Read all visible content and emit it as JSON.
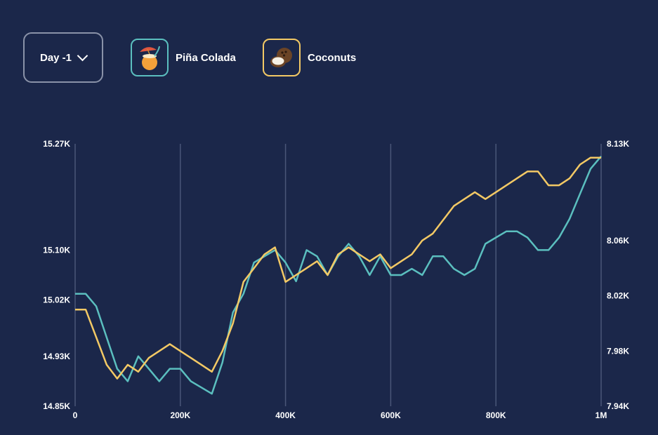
{
  "controls": {
    "day_label": "Day -1"
  },
  "legend": [
    {
      "label": "Piña Colada",
      "color": "#5bbfbf",
      "icon": "pina-colada-icon"
    },
    {
      "label": "Coconuts",
      "color": "#f3c965",
      "icon": "coconut-icon"
    }
  ],
  "chart_data": {
    "type": "line",
    "xlim": [
      0,
      1000000
    ],
    "x_ticks": [
      {
        "value": 0,
        "label": "0"
      },
      {
        "value": 200000,
        "label": "200K"
      },
      {
        "value": 400000,
        "label": "400K"
      },
      {
        "value": 600000,
        "label": "600K"
      },
      {
        "value": 800000,
        "label": "800K"
      },
      {
        "value": 1000000,
        "label": "1M"
      }
    ],
    "left_axis": {
      "ylim": [
        14.85,
        15.27
      ],
      "ticks": [
        {
          "value": 15.27,
          "label": "15.27K"
        },
        {
          "value": 15.1,
          "label": "15.10K"
        },
        {
          "value": 15.02,
          "label": "15.02K"
        },
        {
          "value": 14.93,
          "label": "14.93K"
        },
        {
          "value": 14.85,
          "label": "14.85K"
        }
      ]
    },
    "right_axis": {
      "ylim": [
        7.94,
        8.13
      ],
      "ticks": [
        {
          "value": 8.13,
          "label": "8.13K"
        },
        {
          "value": 8.06,
          "label": "8.06K"
        },
        {
          "value": 8.02,
          "label": "8.02K"
        },
        {
          "value": 7.98,
          "label": "7.98K"
        },
        {
          "value": 7.94,
          "label": "7.94K"
        }
      ]
    },
    "grid": "vertical",
    "series": [
      {
        "name": "Piña Colada",
        "axis": "left",
        "color": "#5bbfbf",
        "x": [
          0,
          20000,
          40000,
          60000,
          80000,
          100000,
          120000,
          140000,
          160000,
          180000,
          200000,
          220000,
          240000,
          260000,
          280000,
          300000,
          320000,
          340000,
          360000,
          380000,
          400000,
          420000,
          440000,
          460000,
          480000,
          500000,
          520000,
          540000,
          560000,
          580000,
          600000,
          620000,
          640000,
          660000,
          680000,
          700000,
          720000,
          740000,
          760000,
          780000,
          800000,
          820000,
          840000,
          860000,
          880000,
          900000,
          920000,
          940000,
          960000,
          980000,
          1000000
        ],
        "values": [
          15.03,
          15.03,
          15.01,
          14.96,
          14.91,
          14.89,
          14.93,
          14.91,
          14.89,
          14.91,
          14.91,
          14.89,
          14.88,
          14.87,
          14.92,
          15.0,
          15.03,
          15.08,
          15.09,
          15.1,
          15.08,
          15.05,
          15.1,
          15.09,
          15.06,
          15.09,
          15.11,
          15.09,
          15.06,
          15.09,
          15.06,
          15.06,
          15.07,
          15.06,
          15.09,
          15.09,
          15.07,
          15.06,
          15.07,
          15.11,
          15.12,
          15.13,
          15.13,
          15.12,
          15.1,
          15.1,
          15.12,
          15.15,
          15.19,
          15.23,
          15.25
        ]
      },
      {
        "name": "Coconuts",
        "axis": "right",
        "color": "#f3c965",
        "x": [
          0,
          20000,
          40000,
          60000,
          80000,
          100000,
          120000,
          140000,
          160000,
          180000,
          200000,
          220000,
          240000,
          260000,
          280000,
          300000,
          320000,
          340000,
          360000,
          380000,
          400000,
          420000,
          440000,
          460000,
          480000,
          500000,
          520000,
          540000,
          560000,
          580000,
          600000,
          620000,
          640000,
          660000,
          680000,
          700000,
          720000,
          740000,
          760000,
          780000,
          800000,
          820000,
          840000,
          860000,
          880000,
          900000,
          920000,
          940000,
          960000,
          980000,
          1000000
        ],
        "values": [
          8.01,
          8.01,
          7.99,
          7.97,
          7.96,
          7.97,
          7.965,
          7.975,
          7.98,
          7.985,
          7.98,
          7.975,
          7.97,
          7.965,
          7.98,
          8.0,
          8.03,
          8.04,
          8.05,
          8.055,
          8.03,
          8.035,
          8.04,
          8.045,
          8.035,
          8.05,
          8.055,
          8.05,
          8.045,
          8.05,
          8.04,
          8.045,
          8.05,
          8.06,
          8.065,
          8.075,
          8.085,
          8.09,
          8.095,
          8.09,
          8.095,
          8.1,
          8.105,
          8.11,
          8.11,
          8.1,
          8.1,
          8.105,
          8.115,
          8.12,
          8.12
        ]
      }
    ]
  }
}
